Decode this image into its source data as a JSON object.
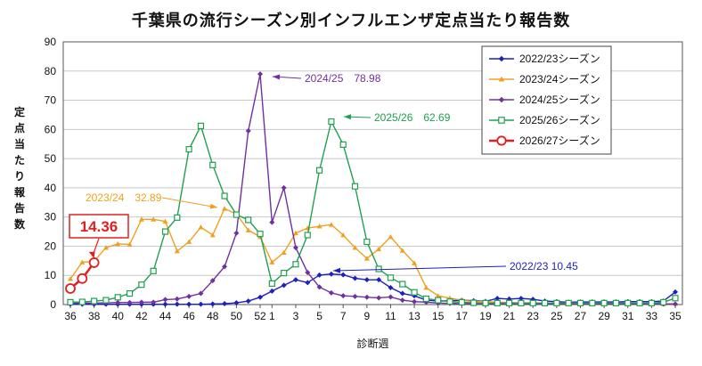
{
  "chart_data": {
    "type": "line",
    "title": "千葉県の流行シーズン別インフルエンザ定点当たり報告数",
    "xlabel": "診断週",
    "ylabel": "定点当たり報告数",
    "ylim": [
      0,
      90
    ],
    "yticks": [
      0,
      10,
      20,
      30,
      40,
      50,
      60,
      70,
      80,
      90
    ],
    "x_weeks": [
      36,
      37,
      38,
      39,
      40,
      41,
      42,
      43,
      44,
      45,
      46,
      47,
      48,
      49,
      50,
      51,
      52,
      1,
      2,
      3,
      4,
      5,
      6,
      7,
      8,
      9,
      10,
      11,
      12,
      13,
      14,
      15,
      16,
      17,
      18,
      19,
      20,
      21,
      22,
      23,
      24,
      25,
      26,
      27,
      28,
      29,
      30,
      31,
      32,
      33,
      34,
      35
    ],
    "x_tick_labels": [
      "36",
      "38",
      "40",
      "42",
      "44",
      "46",
      "48",
      "50",
      "52",
      "1",
      "3",
      "5",
      "7",
      "9",
      "11",
      "13",
      "15",
      "17",
      "19",
      "21",
      "23",
      "25",
      "27",
      "29",
      "31",
      "33",
      "35"
    ],
    "grid": true,
    "legend_position": "top-right",
    "series": [
      {
        "name": "2022/23シーズン",
        "color": "#1f1fbf",
        "marker": "diamond",
        "values": [
          0.1,
          0.1,
          0.1,
          0.1,
          0.1,
          0.1,
          0.1,
          0.1,
          0.1,
          0.1,
          0.1,
          0.1,
          0.2,
          0.3,
          0.6,
          1.2,
          2.5,
          4.6,
          6.6,
          8.5,
          7.5,
          10.1,
          10.45,
          10.2,
          9.0,
          8.5,
          8.5,
          5.8,
          3.8,
          3.0,
          1.5,
          1.2,
          1.3,
          1.5,
          1.3,
          1.1,
          2.1,
          1.9,
          2.1,
          1.8,
          1.2,
          1.0,
          0.8,
          0.9,
          0.9,
          0.9,
          0.9,
          1.0,
          1.0,
          1.0,
          1.2,
          4.3
        ]
      },
      {
        "name": "2023/24シーズン",
        "color": "#f0a020",
        "marker": "triangle",
        "values": [
          8.8,
          14.5,
          14.8,
          19.5,
          20.8,
          20.6,
          29.2,
          29.2,
          28.5,
          18.3,
          21.5,
          26.5,
          23.8,
          32.89,
          31.0,
          25.5,
          23.2,
          14.5,
          17.8,
          24.5,
          26.2,
          26.8,
          27.4,
          23.8,
          19.5,
          15.8,
          19.0,
          23.2,
          18.5,
          14.2,
          5.8,
          3.0,
          2.2,
          1.5,
          1.0,
          1.0,
          0.8,
          0.7,
          0.6,
          0.6,
          0.5,
          0.5,
          0.5,
          0.4,
          0.3,
          0.3,
          0.3,
          0.3,
          0.3,
          0.3,
          0.2,
          0.3
        ]
      },
      {
        "name": "2024/25シーズン",
        "color": "#7030a0",
        "marker": "diamond",
        "values": [
          0.5,
          0.5,
          0.5,
          0.6,
          0.7,
          0.7,
          0.8,
          0.8,
          1.7,
          1.9,
          2.8,
          3.8,
          8.2,
          13.0,
          24.5,
          59.5,
          78.98,
          28.2,
          40.0,
          19.5,
          11.0,
          6.0,
          4.0,
          3.0,
          2.8,
          2.5,
          2.3,
          2.6,
          1.5,
          1.0,
          0.8,
          0.5,
          0.4,
          0.3,
          0.3,
          0.3,
          0.3,
          0.3,
          0.2,
          0.2,
          0.2,
          0.2,
          0.2,
          0.2,
          0.2,
          0.2,
          0.2,
          0.2,
          0.2,
          0.2,
          0.2,
          0.2
        ]
      },
      {
        "name": "2025/26シーズン",
        "color": "#20a050",
        "marker": "square",
        "values": [
          0.8,
          0.9,
          1.2,
          1.5,
          2.5,
          3.8,
          6.8,
          11.5,
          25.0,
          29.8,
          53.2,
          61.2,
          47.8,
          37.2,
          30.8,
          29.0,
          24.2,
          7.2,
          10.8,
          13.8,
          23.8,
          46.0,
          62.69,
          54.8,
          40.5,
          21.5,
          12.2,
          9.2,
          7.0,
          4.2,
          2.0,
          1.5,
          1.0,
          0.8,
          0.6,
          0.5,
          0.5,
          0.5,
          0.5,
          0.5,
          0.5,
          0.5,
          0.5,
          0.5,
          0.5,
          0.5,
          0.5,
          0.5,
          0.5,
          0.5,
          0.8,
          2.2
        ]
      },
      {
        "name": "2026/27シーズン",
        "color": "#e02020",
        "marker": "circle",
        "values": [
          5.5,
          8.9,
          14.36
        ]
      }
    ],
    "annotations": [
      {
        "label": "2024/25　78.98",
        "series": 2,
        "week_index": 16,
        "color": "#7030a0"
      },
      {
        "label": "2025/26　62.69",
        "series": 3,
        "week_index": 22,
        "color": "#20a050"
      },
      {
        "label": "2023/24　32.89",
        "series": 1,
        "week_index": 13,
        "color": "#f0a020"
      },
      {
        "label": "2022/23 10.45",
        "series": 0,
        "week_index": 22,
        "color": "#1f1fbf"
      },
      {
        "label": "14.36",
        "series": 4,
        "week_index": 2,
        "color": "#e02020",
        "boxed": true
      }
    ]
  }
}
